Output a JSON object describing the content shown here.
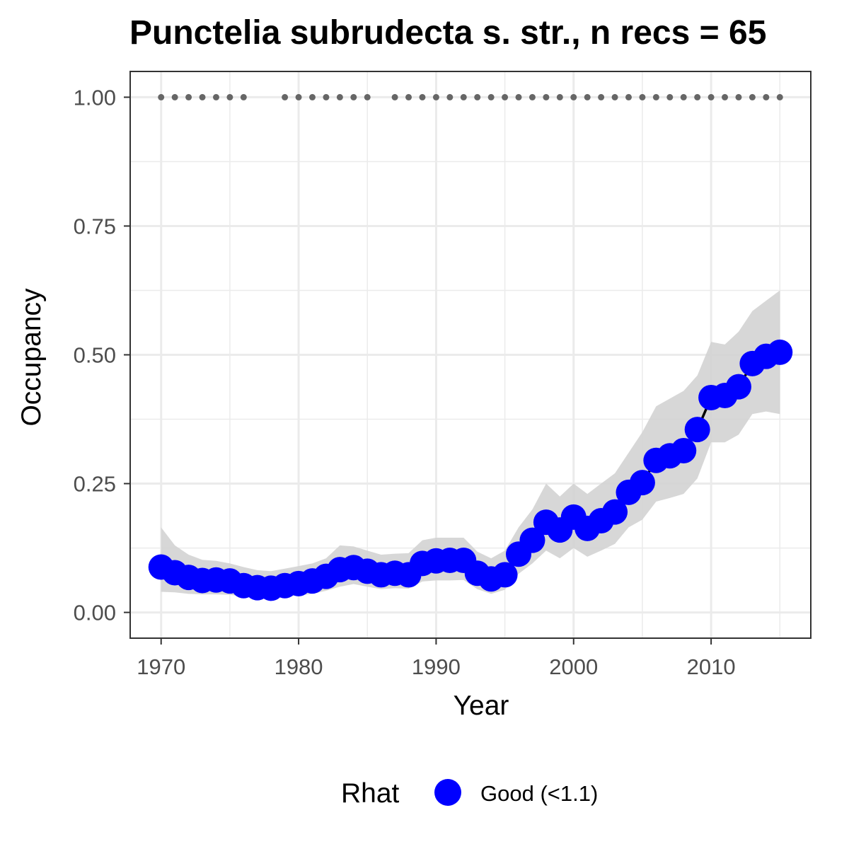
{
  "chart_data": {
    "type": "line",
    "title": "Punctelia subrudecta s. str., n recs = 65",
    "xlabel": "Year",
    "ylabel": "Occupancy",
    "xlim": [
      1967.75,
      2017.25
    ],
    "ylim": [
      -0.05,
      1.05
    ],
    "x_ticks": [
      "1970",
      "1980",
      "1990",
      "2000",
      "2010"
    ],
    "y_ticks": [
      "0.00",
      "0.25",
      "0.50",
      "0.75",
      "1.00"
    ],
    "grid": true,
    "legend": {
      "title": "Rhat",
      "position": "bottom",
      "entries": [
        {
          "label": "Good (<1.1)",
          "color": "#0000ff"
        }
      ]
    },
    "colors": {
      "point": "#0000ff",
      "line": "#000000",
      "ribbon": "#d3d3d3",
      "record_dots": "#666666",
      "panel_border": "#333333",
      "grid": "#ebebeb"
    },
    "record_years": [
      1970,
      1971,
      1972,
      1973,
      1974,
      1975,
      1976,
      1979,
      1980,
      1981,
      1982,
      1983,
      1984,
      1985,
      1987,
      1988,
      1989,
      1990,
      1991,
      1992,
      1993,
      1994,
      1995,
      1996,
      1997,
      1998,
      1999,
      2000,
      2001,
      2002,
      2003,
      2004,
      2005,
      2006,
      2007,
      2008,
      2009,
      2010,
      2011,
      2012,
      2013,
      2014,
      2015
    ],
    "record_value": 1.0,
    "series": [
      {
        "x": [
          1970,
          1971,
          1972,
          1973,
          1974,
          1975,
          1976,
          1977,
          1978,
          1979,
          1980,
          1981,
          1982,
          1983,
          1984,
          1985,
          1986,
          1987,
          1988,
          1989,
          1990,
          1991,
          1992,
          1993,
          1994,
          1995,
          1996,
          1997,
          1998,
          1999,
          2000,
          2001,
          2002,
          2003,
          2004,
          2005,
          2006,
          2007,
          2008,
          2009,
          2010,
          2011,
          2012,
          2013,
          2014,
          2015
        ],
        "y": [
          0.088,
          0.077,
          0.068,
          0.062,
          0.063,
          0.061,
          0.052,
          0.048,
          0.047,
          0.052,
          0.056,
          0.061,
          0.07,
          0.083,
          0.087,
          0.08,
          0.073,
          0.076,
          0.073,
          0.095,
          0.1,
          0.101,
          0.101,
          0.076,
          0.065,
          0.073,
          0.113,
          0.14,
          0.175,
          0.16,
          0.185,
          0.163,
          0.178,
          0.195,
          0.233,
          0.252,
          0.295,
          0.304,
          0.314,
          0.355,
          0.417,
          0.421,
          0.438,
          0.483,
          0.497,
          0.505
        ],
        "lower": [
          0.04,
          0.039,
          0.036,
          0.035,
          0.035,
          0.034,
          0.031,
          0.028,
          0.028,
          0.03,
          0.033,
          0.036,
          0.042,
          0.05,
          0.055,
          0.05,
          0.045,
          0.047,
          0.046,
          0.06,
          0.062,
          0.062,
          0.063,
          0.045,
          0.036,
          0.044,
          0.075,
          0.095,
          0.12,
          0.105,
          0.125,
          0.108,
          0.12,
          0.133,
          0.165,
          0.18,
          0.215,
          0.222,
          0.23,
          0.26,
          0.33,
          0.33,
          0.345,
          0.385,
          0.39,
          0.385
        ],
        "upper": [
          0.165,
          0.13,
          0.112,
          0.102,
          0.1,
          0.095,
          0.088,
          0.082,
          0.08,
          0.085,
          0.09,
          0.095,
          0.105,
          0.13,
          0.128,
          0.12,
          0.112,
          0.114,
          0.115,
          0.14,
          0.145,
          0.145,
          0.145,
          0.118,
          0.105,
          0.12,
          0.165,
          0.2,
          0.25,
          0.225,
          0.25,
          0.23,
          0.25,
          0.27,
          0.31,
          0.35,
          0.4,
          0.415,
          0.43,
          0.46,
          0.525,
          0.52,
          0.545,
          0.585,
          0.605,
          0.625
        ]
      }
    ]
  }
}
